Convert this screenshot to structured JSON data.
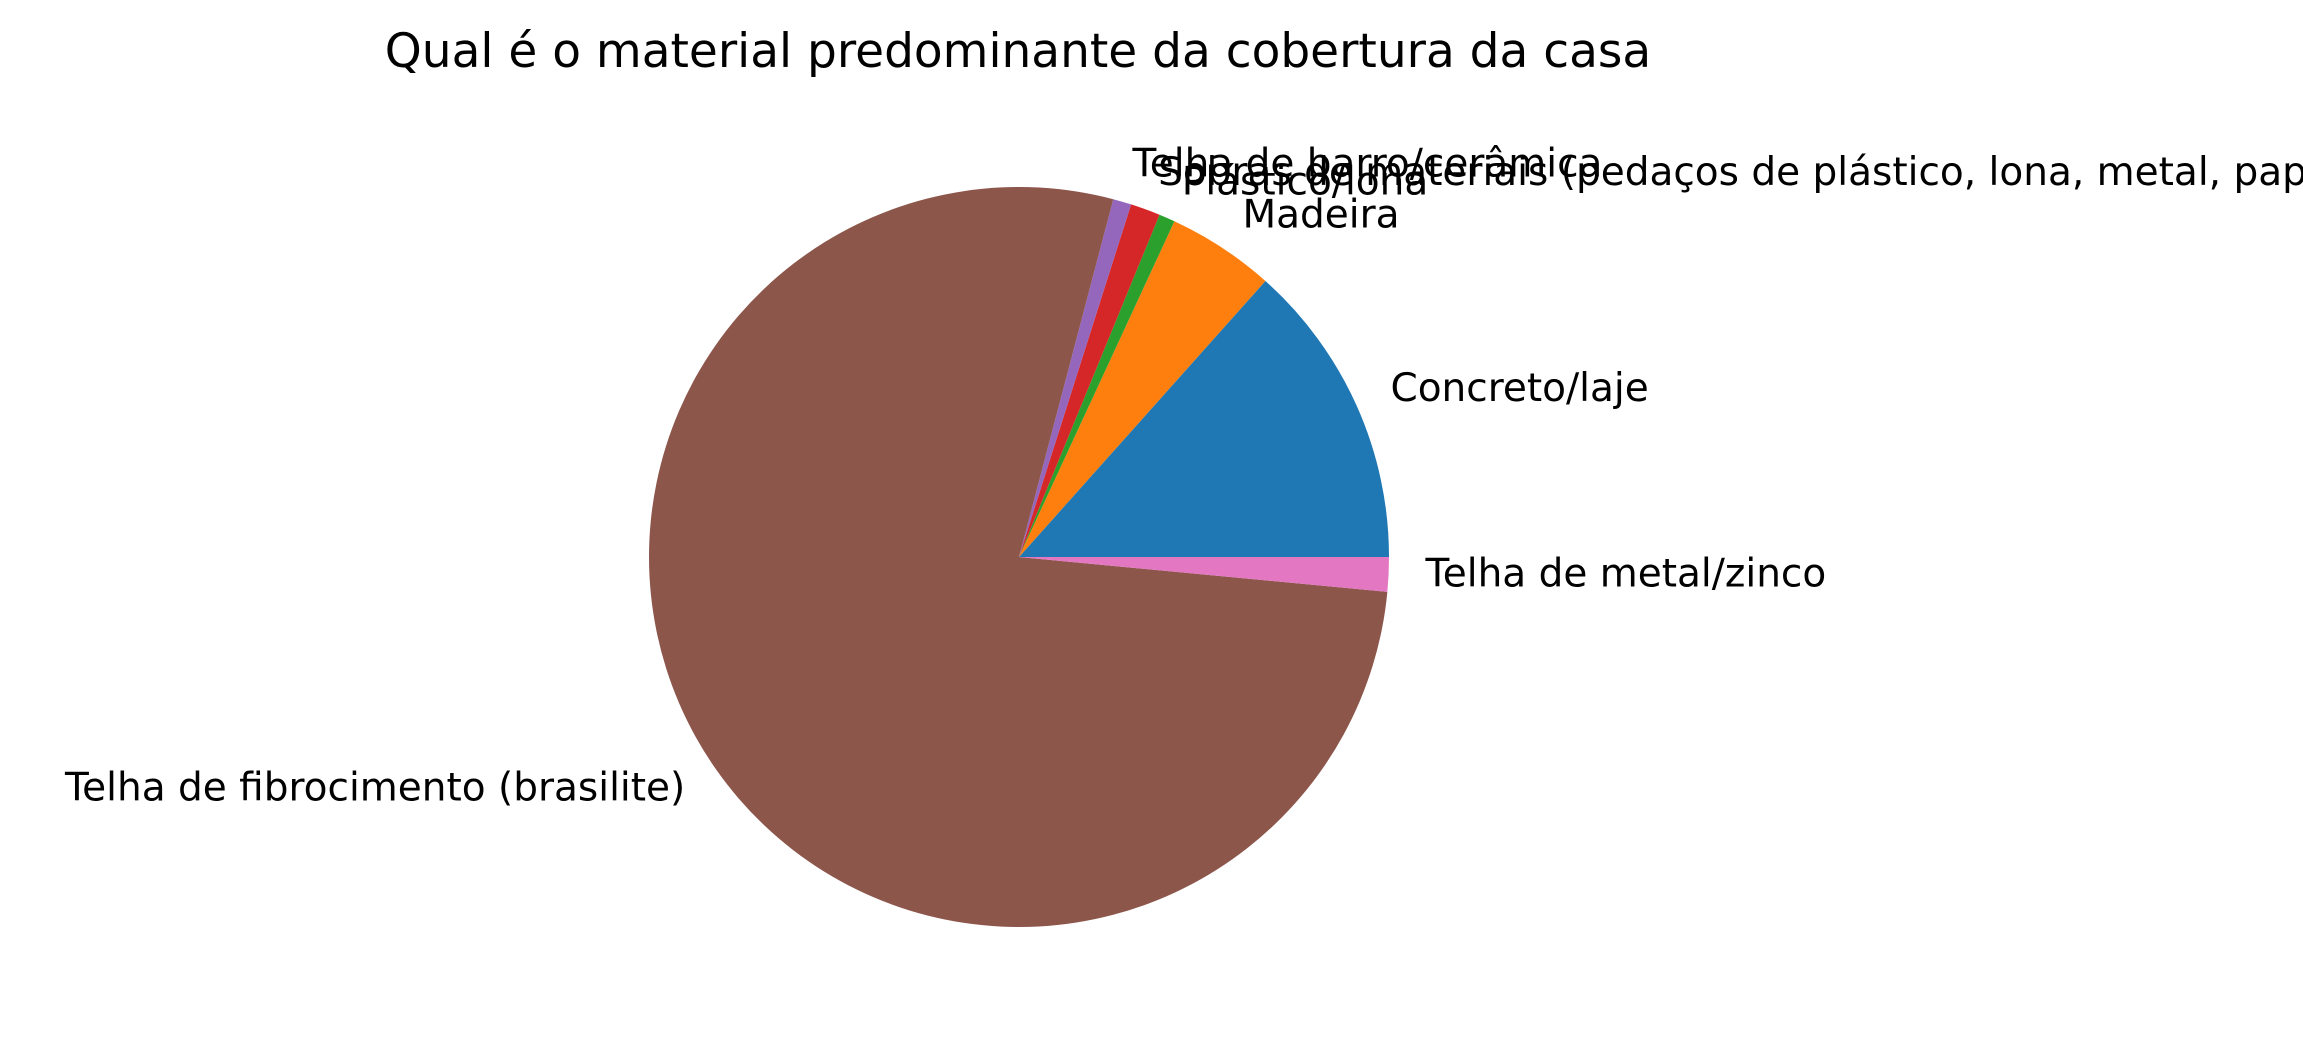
{
  "chart_data": {
    "type": "pie",
    "title": "Qual é o material predominante da cobertura da casa",
    "start_angle_deg": 0,
    "direction": "counterclockwise",
    "slices": [
      {
        "label": "Concreto/laje",
        "value": 13.4,
        "color": "#1f77b4"
      },
      {
        "label": "Madeira",
        "value": 4.7,
        "color": "#ff7f0e"
      },
      {
        "label": "Plástico/lona",
        "value": 0.7,
        "color": "#2ca02c"
      },
      {
        "label": "Sobras de materiais (pedaços de plástico, lona, metal, papelão, etc)",
        "value": 1.3,
        "color": "#d62728"
      },
      {
        "label": "Telha de barro/cerâmica",
        "value": 0.8,
        "color": "#9467bd"
      },
      {
        "label": "Telha de fibrocimento (brasilite)",
        "value": 77.6,
        "color": "#8c564b"
      },
      {
        "label": "Telha de metal/zinco",
        "value": 1.5,
        "color": "#e377c2"
      }
    ]
  }
}
